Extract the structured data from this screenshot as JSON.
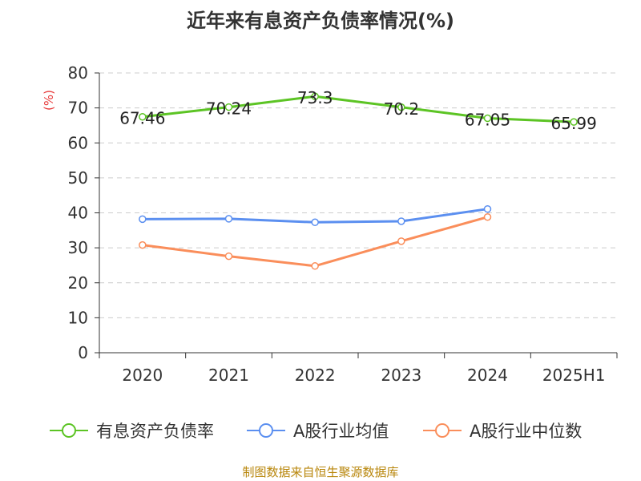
{
  "chart_data": {
    "type": "line",
    "title": "近年来有息资产负债率情况(%)",
    "ylabel": "(%)",
    "xlabel": "",
    "ylim": [
      0,
      80
    ],
    "yticks": [
      0,
      10,
      20,
      30,
      40,
      50,
      60,
      70,
      80
    ],
    "categories": [
      "2020",
      "2021",
      "2022",
      "2023",
      "2024",
      "2025H1"
    ],
    "grid": true,
    "legend_position": "bottom",
    "series": [
      {
        "name": "有息资产负债率",
        "color": "#5cc424",
        "values": [
          67.46,
          70.24,
          73.3,
          70.2,
          67.05,
          65.99
        ],
        "labels": [
          "67.46",
          "70.24",
          "73.3",
          "70.2",
          "67.05",
          "65.99"
        ]
      },
      {
        "name": "A股行业均值",
        "color": "#5b8ff0",
        "values": [
          38.2,
          38.3,
          37.3,
          37.6,
          41.1,
          null
        ]
      },
      {
        "name": "A股行业中位数",
        "color": "#fa8e5b",
        "values": [
          30.8,
          27.6,
          24.8,
          31.9,
          38.8,
          null
        ]
      }
    ]
  },
  "source": "制图数据来自恒生聚源数据库"
}
